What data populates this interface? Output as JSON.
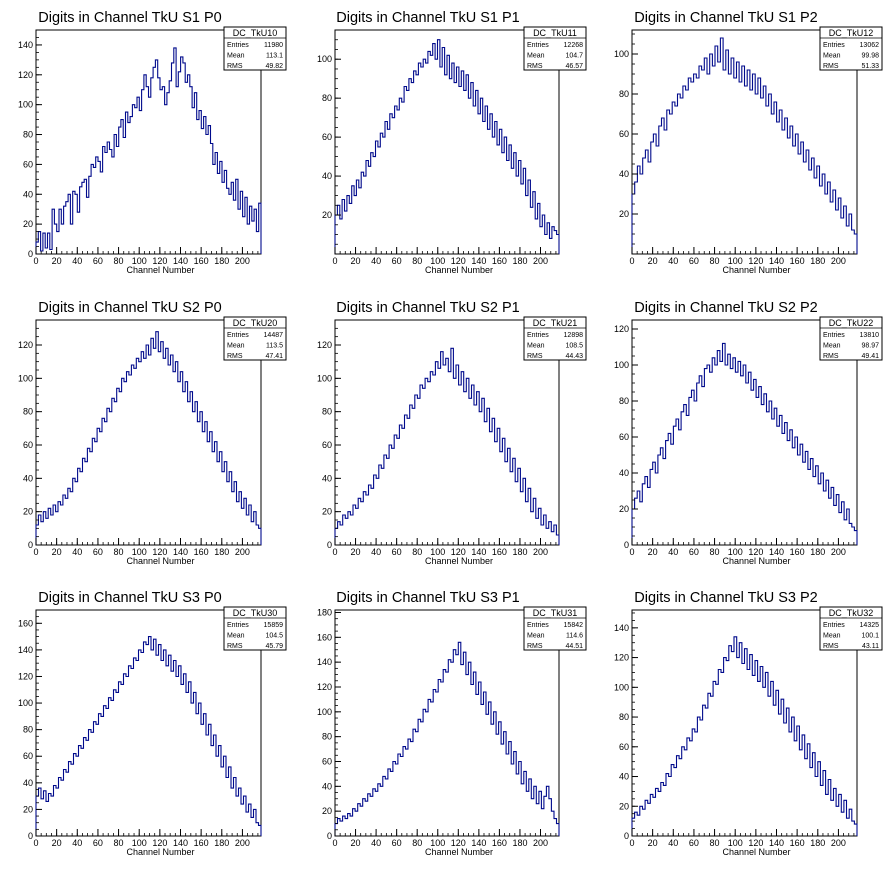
{
  "chart_data": [
    {
      "type": "histogram",
      "name": "DC_TkU10",
      "title": "Digits in Channel TkU S1 P0",
      "xlabel": "Channel Number",
      "ylabel": "",
      "xlim": [
        0,
        218
      ],
      "ylim": [
        0,
        150
      ],
      "xticks": [
        "0",
        "20",
        "40",
        "60",
        "80",
        "100",
        "120",
        "140",
        "160",
        "180",
        "200"
      ],
      "yticks": [
        "0",
        "20",
        "40",
        "60",
        "80",
        "100",
        "120",
        "140"
      ],
      "stats": {
        "Entries": "11980",
        "Mean": "113.1",
        "RMS": "49.82"
      },
      "series": [
        {
          "values": [
            8,
            15,
            2,
            14,
            4,
            14,
            3,
            30,
            20,
            15,
            30,
            20,
            32,
            35,
            40,
            20,
            42,
            40,
            28,
            45,
            48,
            50,
            38,
            52,
            60,
            58,
            65,
            62,
            55,
            72,
            68,
            75,
            70,
            65,
            80,
            72,
            85,
            90,
            78,
            95,
            88,
            92,
            100,
            98,
            105,
            96,
            110,
            120,
            112,
            105,
            118,
            125,
            130,
            118,
            110,
            112,
            100,
            108,
            116,
            128,
            138,
            112,
            122,
            132,
            128,
            115,
            120,
            112,
            98,
            108,
            90,
            96,
            84,
            92,
            80,
            86,
            74,
            60,
            68,
            54,
            62,
            48,
            56,
            44,
            40,
            48,
            36,
            50,
            30,
            42,
            25,
            38,
            20,
            32,
            22,
            30,
            15,
            34
          ]
        }
      ]
    },
    {
      "type": "histogram",
      "name": "DC_TkU11",
      "title": "Digits in Channel TkU S1 P1",
      "xlabel": "Channel Number",
      "ylabel": "",
      "xlim": [
        0,
        218
      ],
      "ylim": [
        0,
        115
      ],
      "xticks": [
        "0",
        "20",
        "40",
        "60",
        "80",
        "100",
        "120",
        "140",
        "160",
        "180",
        "200"
      ],
      "yticks": [
        "20",
        "40",
        "60",
        "80",
        "100"
      ],
      "stats": {
        "Entries": "12268",
        "Mean": "104.7",
        "RMS": "46.57"
      },
      "series": [
        {
          "values": [
            20,
            25,
            18,
            28,
            22,
            30,
            26,
            35,
            30,
            38,
            34,
            42,
            40,
            48,
            45,
            52,
            50,
            58,
            55,
            62,
            60,
            68,
            64,
            72,
            70,
            76,
            74,
            80,
            78,
            86,
            84,
            90,
            88,
            94,
            92,
            98,
            96,
            100,
            98,
            104,
            102,
            108,
            100,
            110,
            96,
            106,
            92,
            102,
            90,
            98,
            88,
            96,
            86,
            94,
            84,
            92,
            80,
            88,
            76,
            84,
            72,
            80,
            68,
            76,
            64,
            72,
            60,
            68,
            56,
            64,
            52,
            60,
            48,
            56,
            44,
            52,
            40,
            48,
            36,
            44,
            30,
            38,
            24,
            32,
            18,
            26,
            14,
            20,
            10,
            16,
            8,
            14,
            12,
            10
          ]
        }
      ]
    },
    {
      "type": "histogram",
      "name": "DC_TkU12",
      "title": "Digits in Channel TkU S1 P2",
      "xlabel": "Channel Number",
      "ylabel": "",
      "xlim": [
        0,
        218
      ],
      "ylim": [
        0,
        112
      ],
      "xticks": [
        "0",
        "20",
        "40",
        "60",
        "80",
        "100",
        "120",
        "140",
        "160",
        "180",
        "200"
      ],
      "yticks": [
        "20",
        "40",
        "60",
        "80",
        "100"
      ],
      "stats": {
        "Entries": "13062",
        "Mean": "99.98",
        "RMS": "51.33"
      },
      "series": [
        {
          "values": [
            30,
            36,
            44,
            40,
            48,
            52,
            46,
            56,
            60,
            54,
            64,
            68,
            62,
            72,
            70,
            76,
            74,
            80,
            78,
            84,
            82,
            88,
            86,
            90,
            88,
            94,
            92,
            98,
            90,
            100,
            94,
            104,
            96,
            108,
            92,
            102,
            90,
            98,
            88,
            96,
            86,
            94,
            84,
            92,
            82,
            90,
            80,
            88,
            78,
            84,
            74,
            80,
            70,
            76,
            66,
            72,
            62,
            68,
            58,
            64,
            54,
            60,
            50,
            56,
            46,
            52,
            42,
            48,
            38,
            44,
            34,
            40,
            30,
            36,
            26,
            32,
            22,
            28,
            18,
            24,
            14,
            20,
            12,
            10
          ]
        }
      ]
    },
    {
      "type": "histogram",
      "name": "DC_TkU20",
      "title": "Digits in Channel TkU S2 P0",
      "xlabel": "Channel Number",
      "ylabel": "",
      "xlim": [
        0,
        218
      ],
      "ylim": [
        0,
        135
      ],
      "xticks": [
        "0",
        "20",
        "40",
        "60",
        "80",
        "100",
        "120",
        "140",
        "160",
        "180",
        "200"
      ],
      "yticks": [
        "0",
        "20",
        "40",
        "60",
        "80",
        "100",
        "120"
      ],
      "stats": {
        "Entries": "14487",
        "Mean": "113.5",
        "RMS": "47.41"
      },
      "series": [
        {
          "values": [
            12,
            18,
            14,
            20,
            16,
            22,
            18,
            24,
            20,
            26,
            24,
            30,
            28,
            34,
            32,
            40,
            38,
            46,
            44,
            52,
            50,
            58,
            56,
            64,
            62,
            70,
            68,
            76,
            74,
            82,
            80,
            88,
            86,
            94,
            92,
            100,
            98,
            104,
            102,
            108,
            106,
            112,
            110,
            116,
            112,
            120,
            114,
            124,
            118,
            128,
            116,
            122,
            112,
            118,
            108,
            114,
            104,
            110,
            98,
            104,
            92,
            98,
            86,
            92,
            80,
            86,
            74,
            80,
            68,
            74,
            62,
            68,
            56,
            62,
            50,
            56,
            44,
            50,
            38,
            44,
            32,
            38,
            26,
            32,
            22,
            28,
            18,
            24,
            14,
            20,
            12,
            10
          ]
        }
      ]
    },
    {
      "type": "histogram",
      "name": "DC_TkU21",
      "title": "Digits in Channel TkU S2 P1",
      "xlabel": "Channel Number",
      "ylabel": "",
      "xlim": [
        0,
        218
      ],
      "ylim": [
        0,
        135
      ],
      "xticks": [
        "0",
        "20",
        "40",
        "60",
        "80",
        "100",
        "120",
        "140",
        "160",
        "180",
        "200"
      ],
      "yticks": [
        "0",
        "20",
        "40",
        "60",
        "80",
        "100",
        "120"
      ],
      "stats": {
        "Entries": "12898",
        "Mean": "108.5",
        "RMS": "44.43"
      },
      "series": [
        {
          "values": [
            10,
            14,
            12,
            18,
            16,
            20,
            18,
            24,
            22,
            28,
            26,
            32,
            30,
            36,
            34,
            42,
            40,
            48,
            46,
            54,
            52,
            60,
            58,
            66,
            64,
            72,
            70,
            78,
            76,
            84,
            82,
            90,
            88,
            96,
            94,
            100,
            98,
            104,
            102,
            110,
            106,
            116,
            108,
            112,
            104,
            118,
            100,
            108,
            96,
            104,
            92,
            100,
            88,
            96,
            84,
            92,
            80,
            88,
            74,
            82,
            68,
            76,
            62,
            70,
            56,
            64,
            50,
            58,
            44,
            52,
            38,
            46,
            32,
            40,
            26,
            34,
            20,
            28,
            16,
            22,
            12,
            18,
            10,
            14,
            8,
            12,
            6
          ]
        }
      ]
    },
    {
      "type": "histogram",
      "name": "DC_TkU22",
      "title": "Digits in Channel TkU S2 P2",
      "xlabel": "Channel Number",
      "ylabel": "",
      "xlim": [
        0,
        218
      ],
      "ylim": [
        0,
        125
      ],
      "xticks": [
        "0",
        "20",
        "40",
        "60",
        "80",
        "100",
        "120",
        "140",
        "160",
        "180",
        "200"
      ],
      "yticks": [
        "0",
        "20",
        "40",
        "60",
        "80",
        "100",
        "120"
      ],
      "stats": {
        "Entries": "13810",
        "Mean": "98.97",
        "RMS": "49.41"
      },
      "series": [
        {
          "values": [
            20,
            26,
            30,
            24,
            34,
            38,
            32,
            42,
            46,
            40,
            50,
            54,
            48,
            58,
            62,
            56,
            66,
            70,
            64,
            74,
            78,
            72,
            82,
            86,
            80,
            90,
            94,
            88,
            98,
            100,
            96,
            104,
            100,
            108,
            102,
            112,
            100,
            106,
            98,
            104,
            96,
            102,
            94,
            100,
            90,
            96,
            86,
            92,
            82,
            88,
            78,
            84,
            74,
            80,
            70,
            76,
            66,
            72,
            62,
            68,
            58,
            64,
            54,
            60,
            50,
            56,
            46,
            52,
            42,
            48,
            38,
            44,
            34,
            40,
            30,
            36,
            26,
            32,
            22,
            28,
            18,
            24,
            14,
            20,
            12,
            10,
            8
          ]
        }
      ]
    },
    {
      "type": "histogram",
      "name": "DC_TkU30",
      "title": "Digits in Channel TkU S3 P0",
      "xlabel": "Channel Number",
      "ylabel": "",
      "xlim": [
        0,
        218
      ],
      "ylim": [
        0,
        170
      ],
      "xticks": [
        "0",
        "20",
        "40",
        "60",
        "80",
        "100",
        "120",
        "140",
        "160",
        "180",
        "200"
      ],
      "yticks": [
        "0",
        "20",
        "40",
        "60",
        "80",
        "100",
        "120",
        "140",
        "160"
      ],
      "stats": {
        "Entries": "15859",
        "Mean": "104.5",
        "RMS": "45.79"
      },
      "series": [
        {
          "values": [
            30,
            36,
            28,
            34,
            26,
            32,
            30,
            38,
            36,
            44,
            42,
            50,
            48,
            56,
            54,
            62,
            60,
            68,
            66,
            74,
            72,
            80,
            78,
            86,
            84,
            92,
            90,
            98,
            96,
            104,
            102,
            110,
            108,
            116,
            114,
            122,
            120,
            128,
            126,
            134,
            132,
            140,
            138,
            146,
            144,
            150,
            140,
            148,
            136,
            144,
            132,
            140,
            128,
            136,
            124,
            132,
            120,
            128,
            114,
            122,
            108,
            116,
            100,
            108,
            92,
            100,
            84,
            92,
            76,
            84,
            68,
            76,
            60,
            68,
            52,
            60,
            44,
            52,
            36,
            44,
            30,
            36,
            24,
            30,
            18,
            24,
            14,
            20,
            10,
            8
          ]
        }
      ]
    },
    {
      "type": "histogram",
      "name": "DC_TkU31",
      "title": "Digits in Channel TkU S3 P1",
      "xlabel": "Channel Number",
      "ylabel": "",
      "xlim": [
        0,
        218
      ],
      "ylim": [
        0,
        182
      ],
      "xticks": [
        "0",
        "20",
        "40",
        "60",
        "80",
        "100",
        "120",
        "140",
        "160",
        "180",
        "200"
      ],
      "yticks": [
        "0",
        "20",
        "40",
        "60",
        "80",
        "100",
        "120",
        "140",
        "160",
        "180"
      ],
      "stats": {
        "Entries": "15842",
        "Mean": "114.6",
        "RMS": "44.51"
      },
      "series": [
        {
          "values": [
            10,
            14,
            12,
            16,
            14,
            18,
            16,
            22,
            20,
            26,
            24,
            30,
            28,
            34,
            32,
            38,
            36,
            42,
            40,
            48,
            46,
            54,
            52,
            60,
            58,
            66,
            64,
            72,
            70,
            78,
            76,
            86,
            84,
            94,
            92,
            102,
            100,
            110,
            108,
            118,
            116,
            126,
            124,
            134,
            132,
            142,
            140,
            150,
            146,
            156,
            138,
            148,
            130,
            140,
            122,
            132,
            114,
            124,
            106,
            116,
            98,
            108,
            90,
            100,
            82,
            92,
            74,
            84,
            66,
            76,
            58,
            68,
            50,
            60,
            42,
            52,
            36,
            46,
            30,
            40,
            26,
            36,
            22,
            32,
            40,
            30,
            20,
            14,
            10
          ]
        }
      ]
    },
    {
      "type": "histogram",
      "name": "DC_TkU32",
      "title": "Digits in Channel TkU S3 P2",
      "xlabel": "Channel Number",
      "ylabel": "",
      "xlim": [
        0,
        218
      ],
      "ylim": [
        0,
        152
      ],
      "xticks": [
        "0",
        "20",
        "40",
        "60",
        "80",
        "100",
        "120",
        "140",
        "160",
        "180",
        "200"
      ],
      "yticks": [
        "0",
        "20",
        "40",
        "60",
        "80",
        "100",
        "120",
        "140"
      ],
      "stats": {
        "Entries": "14325",
        "Mean": "100.1",
        "RMS": "43.11"
      },
      "series": [
        {
          "values": [
            12,
            16,
            14,
            20,
            18,
            24,
            22,
            28,
            26,
            32,
            30,
            36,
            34,
            42,
            40,
            48,
            46,
            54,
            52,
            60,
            58,
            66,
            64,
            72,
            70,
            80,
            78,
            88,
            86,
            96,
            94,
            104,
            102,
            112,
            110,
            120,
            118,
            128,
            124,
            134,
            120,
            130,
            116,
            126,
            112,
            122,
            108,
            118,
            104,
            114,
            100,
            110,
            94,
            104,
            88,
            98,
            82,
            92,
            76,
            86,
            70,
            80,
            64,
            74,
            58,
            68,
            52,
            62,
            46,
            56,
            40,
            50,
            34,
            44,
            28,
            38,
            24,
            32,
            20,
            28,
            16,
            24,
            12,
            18,
            10,
            8
          ]
        }
      ]
    }
  ]
}
